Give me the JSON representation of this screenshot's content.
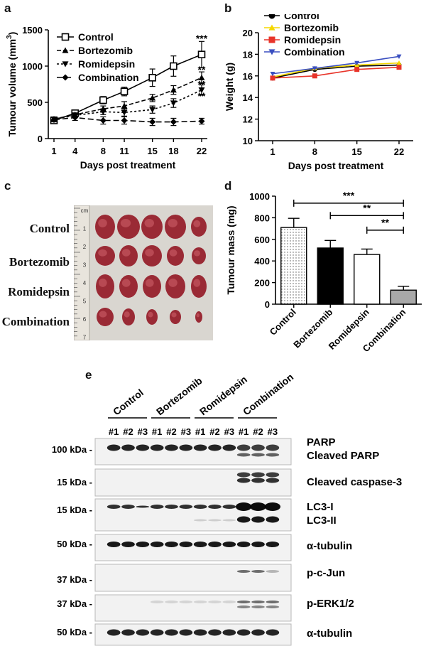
{
  "panels": {
    "a": "a",
    "b": "b",
    "c": "c",
    "d": "d",
    "e": "e"
  },
  "chart_data": [
    {
      "id": "a",
      "type": "line",
      "xlabel": "Days post treatment",
      "ylabel_main": "Tumour volume (mm",
      "ylabel_sup": "3",
      "ylabel_end": ")",
      "x": [
        1,
        4,
        8,
        11,
        15,
        18,
        22
      ],
      "xticks": [
        "1",
        "4",
        "8",
        "11",
        "15",
        "18",
        "22"
      ],
      "ylim": [
        0,
        1500
      ],
      "yticks": [
        0,
        500,
        1000,
        1500
      ],
      "legend_position": "top-left",
      "series": [
        {
          "name": "Control",
          "marker": "square-open",
          "dash": "solid",
          "values": [
            250,
            350,
            530,
            650,
            840,
            1000,
            1160
          ],
          "errors": [
            20,
            30,
            50,
            60,
            120,
            140,
            180
          ]
        },
        {
          "name": "Bortezomib",
          "marker": "triangle-up",
          "dash": "6,3",
          "values": [
            270,
            330,
            410,
            450,
            560,
            670,
            840
          ],
          "errors": [
            20,
            25,
            40,
            60,
            50,
            60,
            80
          ]
        },
        {
          "name": "Romidepsin",
          "marker": "triangle-down",
          "dash": "3,3",
          "values": [
            270,
            320,
            370,
            360,
            400,
            490,
            670
          ],
          "errors": [
            20,
            30,
            40,
            50,
            50,
            60,
            70
          ]
        },
        {
          "name": "Combination",
          "marker": "diamond",
          "dash": "8,4",
          "values": [
            260,
            290,
            250,
            250,
            230,
            230,
            240
          ],
          "errors": [
            30,
            40,
            50,
            50,
            50,
            50,
            40
          ]
        }
      ],
      "annotations": [
        {
          "x": 22,
          "y": 1380,
          "text": "***"
        },
        {
          "x": 22,
          "y": 950,
          "text": "**"
        },
        {
          "x": 22,
          "y": 750,
          "text": "**"
        },
        {
          "x": 22,
          "y": 590,
          "text": "**"
        }
      ]
    },
    {
      "id": "b",
      "type": "line",
      "xlabel": "Days post treatment",
      "ylabel": "Weight (g)",
      "x": [
        1,
        8,
        15,
        22
      ],
      "xticks": [
        "1",
        "8",
        "15",
        "22"
      ],
      "ylim": [
        10,
        20
      ],
      "yticks": [
        10,
        12,
        14,
        16,
        18,
        20
      ],
      "legend_position": "top-left",
      "series": [
        {
          "name": "Control",
          "color": "#000000",
          "marker": "circle",
          "values": [
            15.8,
            16.6,
            16.9,
            17.0
          ]
        },
        {
          "name": "Bortezomib",
          "color": "#f5d800",
          "marker": "triangle-up",
          "values": [
            15.9,
            16.7,
            17.0,
            17.2
          ]
        },
        {
          "name": "Romidepsin",
          "color": "#e8342a",
          "marker": "square",
          "values": [
            15.8,
            16.0,
            16.6,
            16.8
          ]
        },
        {
          "name": "Combination",
          "color": "#3a4fc0",
          "marker": "triangle-down",
          "values": [
            16.2,
            16.7,
            17.2,
            17.8
          ]
        }
      ]
    },
    {
      "id": "d",
      "type": "bar",
      "ylabel": "Tumour mass (mg)",
      "categories": [
        "Control",
        "Bortezomib",
        "Romidepsin",
        "Combination"
      ],
      "values": [
        710,
        520,
        460,
        130
      ],
      "errors": [
        85,
        70,
        50,
        35
      ],
      "fills": [
        "dots",
        "#000000",
        "#ffffff",
        "#a8a8a8"
      ],
      "ylim": [
        0,
        1000
      ],
      "yticks": [
        0,
        200,
        400,
        600,
        800,
        1000
      ],
      "comparisons": [
        {
          "from": 0,
          "to": 3,
          "y": 935,
          "text": "***"
        },
        {
          "from": 1,
          "to": 3,
          "y": 820,
          "text": "**"
        },
        {
          "from": 2,
          "to": 3,
          "y": 685,
          "text": "**"
        }
      ]
    }
  ],
  "photo": {
    "row_labels": [
      "Control",
      "Bortezomib",
      "Romidepsin",
      "Combination"
    ],
    "ruler_digits": [
      "cm",
      "1",
      "2",
      "3",
      "4",
      "5",
      "6",
      "7"
    ]
  },
  "blot": {
    "groups": [
      "Control",
      "Bortezomib",
      "Romidepsin",
      "Combination"
    ],
    "lanes": [
      "#1",
      "#2",
      "#3",
      "#1",
      "#2",
      "#3",
      "#1",
      "#2",
      "#3",
      "#1",
      "#2",
      "#3"
    ],
    "markers": [
      "100 kDa -",
      "15 kDa -",
      "15 kDa -",
      "50 kDa -",
      "37 kDa -",
      "37 kDa -",
      "50 kDa -"
    ],
    "labels": [
      "PARP",
      "Cleaved PARP",
      "Cleaved caspase-3",
      "LC3-I",
      "LC3-II",
      "α-tubulin",
      "p-c-Jun",
      "p-ERK1/2",
      "α-tubulin"
    ]
  }
}
